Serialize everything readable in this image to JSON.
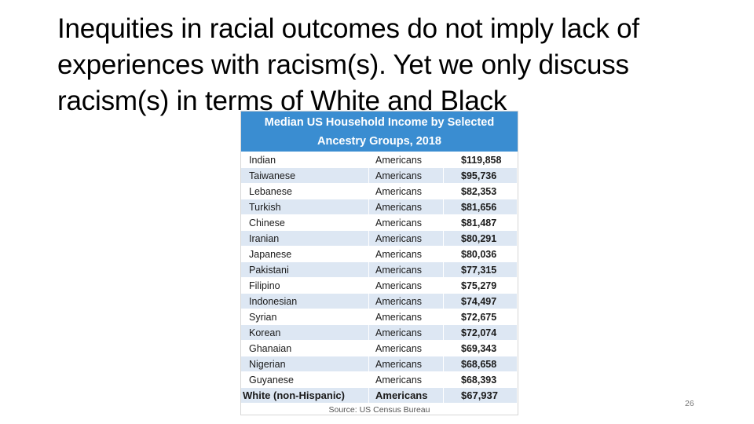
{
  "slide": {
    "title_lines": [
      "Inequities in racial outcomes do not imply lack of",
      "experiences with racism(s). Yet we only discuss",
      "racism(s) in terms of White and Black"
    ],
    "page_number": "26"
  },
  "table": {
    "header_lines": [
      "Median US Household Income by Selected",
      "Ancestry Groups, 2018"
    ],
    "header_color": "#3a8dd1",
    "stripe_color": "#dde7f3",
    "rows": [
      {
        "group": "Indian",
        "suffix": "Americans",
        "income": "$119,858"
      },
      {
        "group": "Taiwanese",
        "suffix": "Americans",
        "income": "$95,736"
      },
      {
        "group": "Lebanese",
        "suffix": "Americans",
        "income": "$82,353"
      },
      {
        "group": "Turkish",
        "suffix": "Americans",
        "income": "$81,656"
      },
      {
        "group": "Chinese",
        "suffix": "Americans",
        "income": "$81,487"
      },
      {
        "group": "Iranian",
        "suffix": "Americans",
        "income": "$80,291"
      },
      {
        "group": "Japanese",
        "suffix": "Americans",
        "income": "$80,036"
      },
      {
        "group": "Pakistani",
        "suffix": "Americans",
        "income": "$77,315"
      },
      {
        "group": "Filipino",
        "suffix": "Americans",
        "income": "$75,279"
      },
      {
        "group": "Indonesian",
        "suffix": "Americans",
        "income": "$74,497"
      },
      {
        "group": "Syrian",
        "suffix": "Americans",
        "income": "$72,675"
      },
      {
        "group": "Korean",
        "suffix": "Americans",
        "income": "$72,074"
      },
      {
        "group": "Ghanaian",
        "suffix": "Americans",
        "income": "$69,343"
      },
      {
        "group": "Nigerian",
        "suffix": "Americans",
        "income": "$68,658"
      },
      {
        "group": "Guyanese",
        "suffix": "Americans",
        "income": "$68,393"
      },
      {
        "group": "White (non-Hispanic)",
        "suffix": "Americans",
        "income": "$67,937"
      }
    ],
    "source": "Source: US Census Bureau"
  }
}
